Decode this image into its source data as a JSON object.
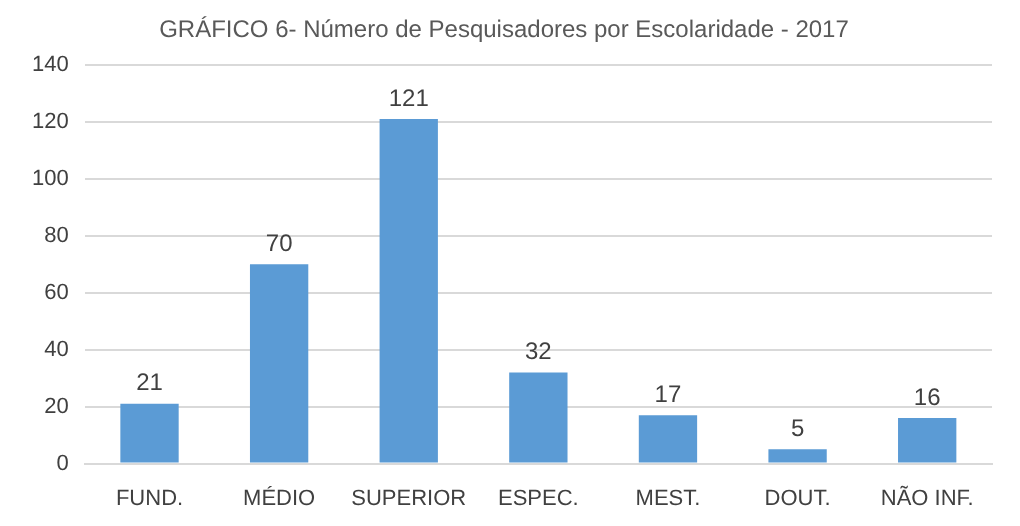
{
  "chart_data": {
    "type": "bar",
    "title": "GRÁFICO 6- Número de Pesquisadores por Escolaridade - 2017",
    "categories": [
      "FUND.",
      "MÉDIO",
      "SUPERIOR",
      "ESPEC.",
      "MEST.",
      "DOUT.",
      "NÃO INF."
    ],
    "values": [
      21,
      70,
      121,
      32,
      17,
      5,
      16
    ],
    "color": "#5b9bd5",
    "ylim": [
      0,
      140
    ],
    "yticks": [
      0,
      20,
      40,
      60,
      80,
      100,
      120,
      140
    ],
    "grid": "y",
    "data_labels": true,
    "legend": false
  }
}
